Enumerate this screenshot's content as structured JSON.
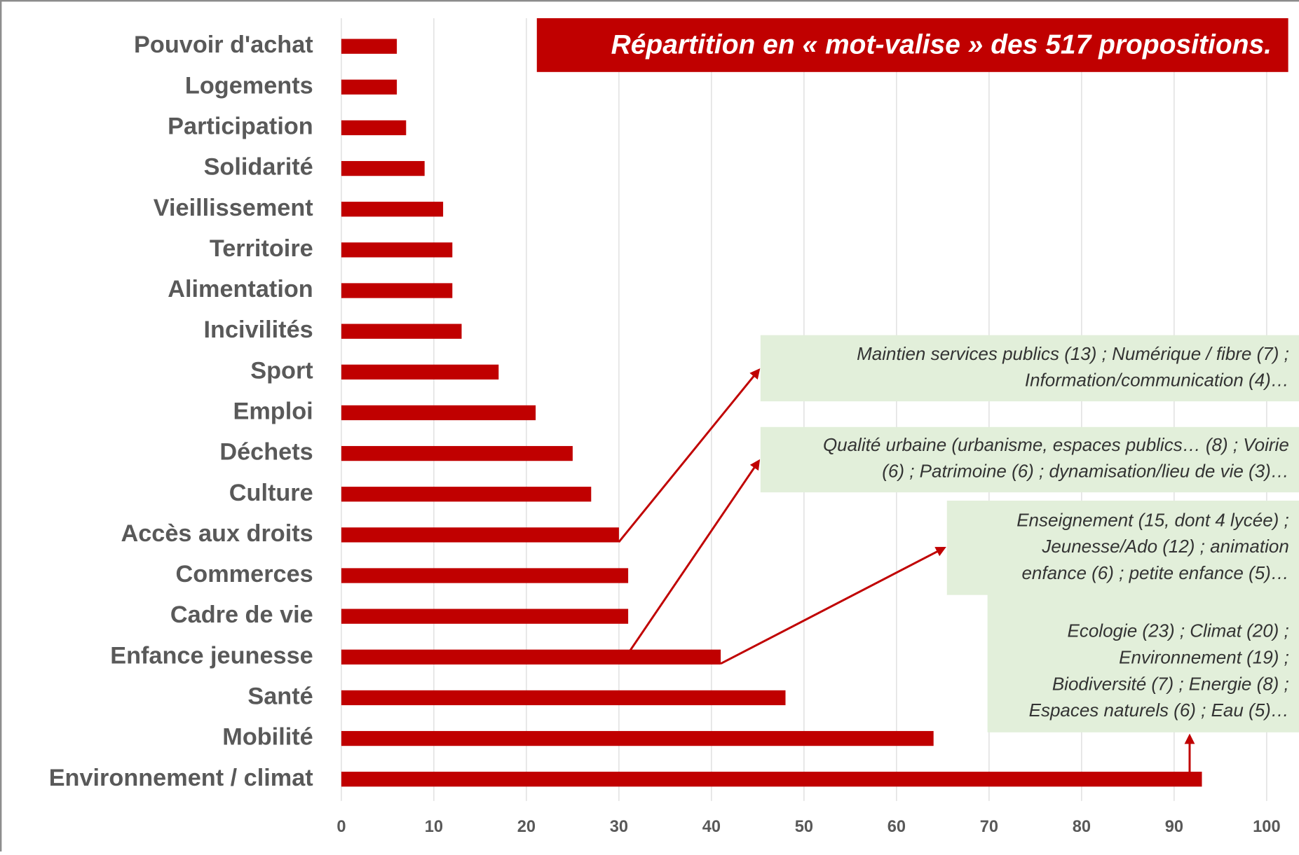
{
  "chart_data": {
    "type": "bar",
    "orientation": "horizontal",
    "title": "Répartition en « mot-valise » des 517 propositions.",
    "categories": [
      "Pouvoir d'achat",
      "Logements",
      "Participation",
      "Solidarité",
      "Vieillissement",
      "Territoire",
      "Alimentation",
      "Incivilités",
      "Sport",
      "Emploi",
      "Déchets",
      "Culture",
      "Accès aux droits",
      "Commerces",
      "Cadre de vie",
      "Enfance jeunesse",
      "Santé",
      "Mobilité",
      "Environnement / climat"
    ],
    "values": [
      6,
      6,
      7,
      9,
      11,
      12,
      12,
      13,
      17,
      21,
      25,
      27,
      30,
      31,
      31,
      41,
      48,
      64,
      93
    ],
    "color": "#c00000",
    "xlim": [
      0,
      100
    ],
    "xticks": [
      0,
      10,
      20,
      30,
      40,
      50,
      60,
      70,
      80,
      90,
      100
    ],
    "grid": true,
    "annotations": [
      {
        "lines": [
          "Maintien services publics (13) ; Numérique / fibre (7) ;",
          "Information/communication (4)…"
        ]
      },
      {
        "lines": [
          "Qualité urbaine (urbanisme, espaces publics… (8) ; Voirie",
          "(6) ; Patrimoine (6) ; dynamisation/lieu de vie (3)…"
        ]
      },
      {
        "lines": [
          "Enseignement (15, dont 4 lycée) ;",
          "Jeunesse/Ado (12) ; animation",
          "enfance (6) ; petite enfance (5)…"
        ]
      },
      {
        "lines": [
          "Ecologie (23) ; Climat (20) ;",
          "Environnement (19) ;",
          "Biodiversité (7) ; Energie (8) ;",
          "Espaces naturels (6) ; Eau (5)…"
        ]
      }
    ]
  }
}
